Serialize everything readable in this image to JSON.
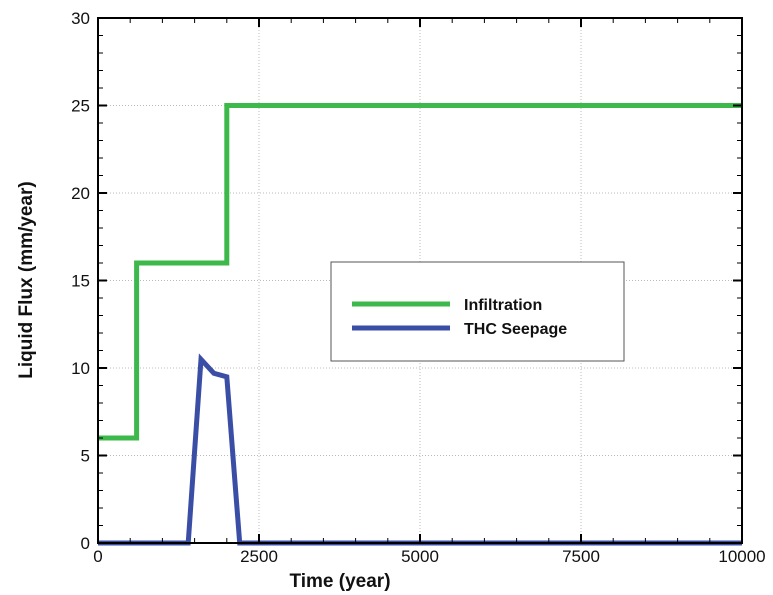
{
  "chart_data": {
    "type": "line",
    "xlabel": "Time (year)",
    "ylabel": "Liquid Flux (mm/year)",
    "xlim": [
      0,
      10000
    ],
    "ylim": [
      0,
      30
    ],
    "x_ticks": [
      "0",
      "2500",
      "5000",
      "7500",
      "10000"
    ],
    "x_tick_values": [
      0,
      2500,
      5000,
      7500,
      10000
    ],
    "y_ticks": [
      "0",
      "5",
      "10",
      "15",
      "20",
      "25",
      "30"
    ],
    "y_tick_values": [
      0,
      5,
      10,
      15,
      20,
      25,
      30
    ],
    "grid": true,
    "legend_position": "center-right",
    "series": [
      {
        "name": "Infiltration",
        "color": "#3cb94a",
        "x": [
          0,
          600,
          600,
          2000,
          2000,
          10000
        ],
        "y": [
          6,
          6,
          16,
          16,
          25,
          25
        ]
      },
      {
        "name": "THC Seepage",
        "color": "#3b4ea6",
        "x": [
          0,
          1400,
          1600,
          1800,
          2000,
          2200,
          10000
        ],
        "y": [
          0,
          0,
          10.5,
          9.7,
          9.5,
          0,
          0
        ]
      }
    ]
  }
}
